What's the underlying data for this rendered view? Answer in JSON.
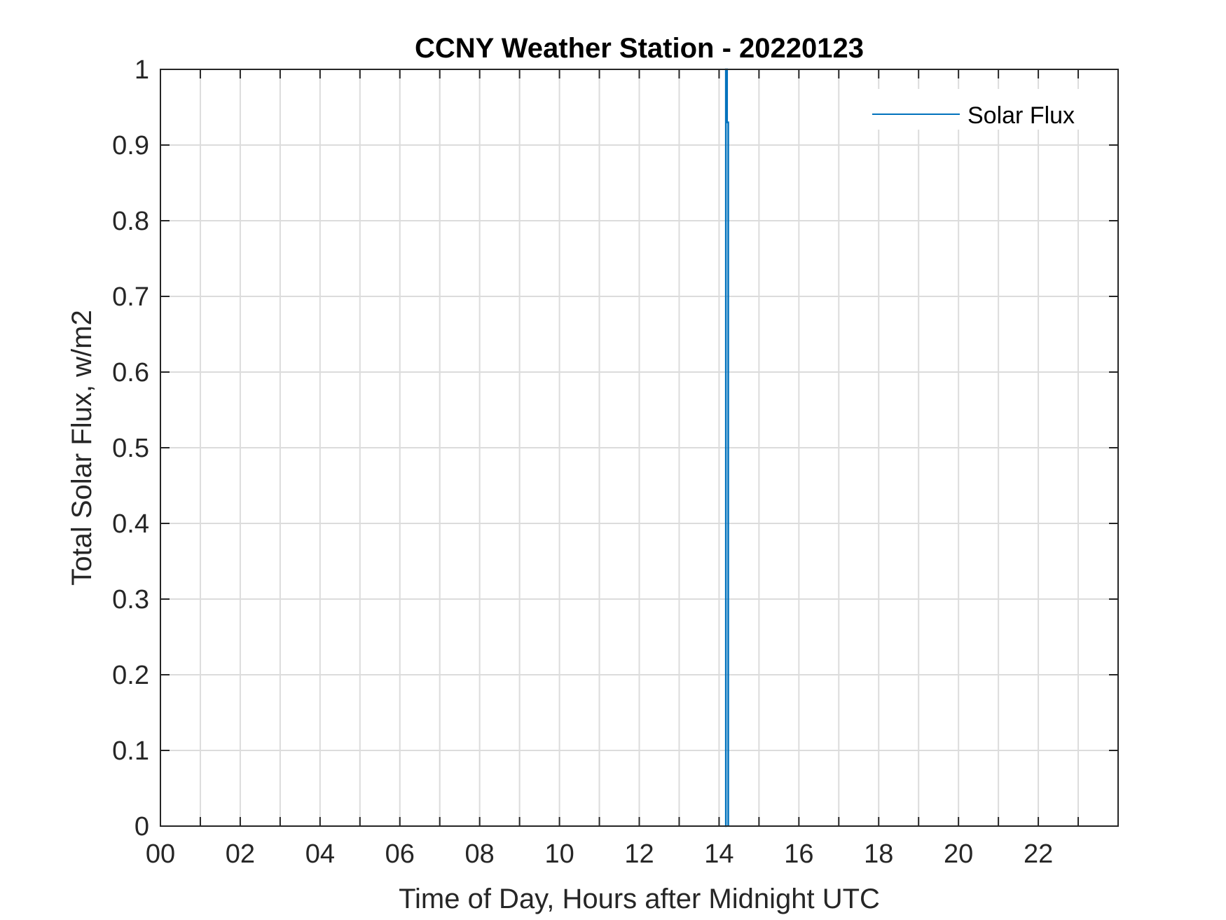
{
  "chart_data": {
    "type": "line",
    "title": "CCNY Weather Station - 20220123",
    "xlabel": "Time of Day, Hours after Midnight UTC",
    "ylabel": "Total Solar Flux, w/m2",
    "xlim": [
      0,
      24
    ],
    "ylim": [
      0,
      1
    ],
    "xticks": [
      0,
      2,
      4,
      6,
      8,
      10,
      12,
      14,
      16,
      18,
      20,
      22
    ],
    "xtick_labels": [
      "00",
      "02",
      "04",
      "06",
      "08",
      "10",
      "12",
      "14",
      "16",
      "18",
      "20",
      "22"
    ],
    "xgrid_step": 1,
    "yticks": [
      0,
      0.1,
      0.2,
      0.3,
      0.4,
      0.5,
      0.6,
      0.7,
      0.8,
      0.9,
      1
    ],
    "ytick_labels": [
      "0",
      "0.1",
      "0.2",
      "0.3",
      "0.4",
      "0.5",
      "0.6",
      "0.7",
      "0.8",
      "0.9",
      "1"
    ],
    "grid": true,
    "legend": {
      "position": "top-right"
    },
    "series": [
      {
        "name": "Solar Flux",
        "color": "#0072BD",
        "x": [
          14.15,
          14.17,
          14.17,
          14.2,
          14.2,
          14.23,
          14.23
        ],
        "y": [
          0,
          0,
          1,
          1,
          0.93,
          0.93,
          0
        ]
      }
    ]
  }
}
